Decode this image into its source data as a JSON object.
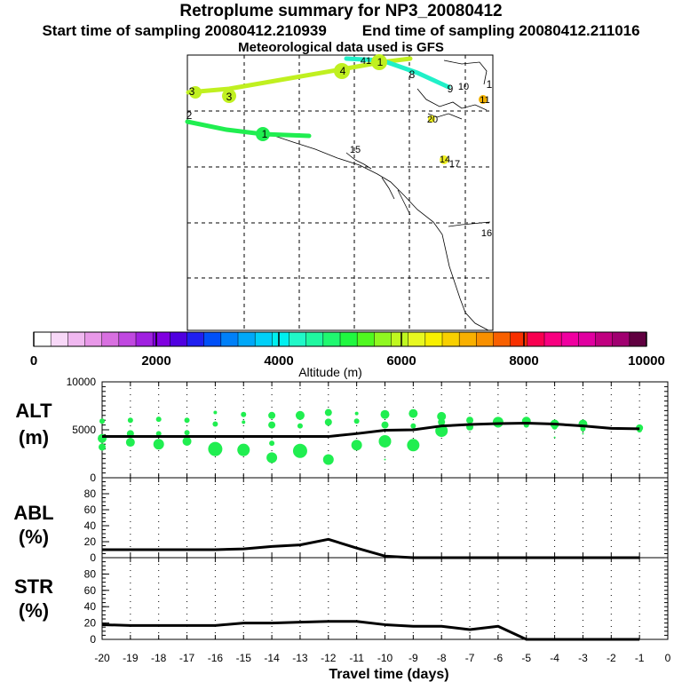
{
  "header": {
    "title": "Retroplume summary for NP3_20080412",
    "start_label": "Start time of sampling 20080412.210939",
    "end_label": "End time of sampling 20080412.211016",
    "met_label": "Meteorological data used is GFS"
  },
  "colors": {
    "scale": [
      "#ffffff",
      "#f8d8f8",
      "#f0b8f0",
      "#e898e8",
      "#d870e0",
      "#c048e0",
      "#a020e0",
      "#8000e0",
      "#5000e0",
      "#2020f0",
      "#0050f8",
      "#0080f8",
      "#00a8f8",
      "#00d0f8",
      "#00f0f0",
      "#20f8c8",
      "#20f8a0",
      "#20f870",
      "#20f840",
      "#50f820",
      "#90f820",
      "#c0f820",
      "#e8f820",
      "#f8f000",
      "#f8d000",
      "#f8b000",
      "#f89000",
      "#f86000",
      "#f83000",
      "#f80050",
      "#f80080",
      "#f000a0",
      "#e000a0",
      "#c00080",
      "#a00070",
      "#600040"
    ],
    "green": "#20ee50",
    "lime": "#c0f020",
    "cyan": "#20f0c8",
    "yellow": "#f0f020"
  },
  "map": {
    "labels": [
      {
        "text": "4",
        "kind": "lime"
      },
      {
        "text": "41",
        "kind": "lime"
      },
      {
        "text": "1",
        "kind": "lime"
      },
      {
        "text": "3",
        "kind": "lime"
      },
      {
        "text": "3",
        "kind": "lime"
      },
      {
        "text": "8",
        "kind": "cyan"
      },
      {
        "text": "10",
        "kind": "cyan"
      },
      {
        "text": "9",
        "kind": "cyan"
      },
      {
        "text": "11",
        "kind": "orange"
      },
      {
        "text": "2",
        "kind": "green"
      },
      {
        "text": "1",
        "kind": "green"
      },
      {
        "text": "20",
        "kind": "yellow"
      },
      {
        "text": "15",
        "kind": "yellow"
      },
      {
        "text": "14",
        "kind": "yellow"
      },
      {
        "text": "17",
        "kind": "yellow"
      },
      {
        "text": "16",
        "kind": "cyan"
      },
      {
        "text": "1",
        "kind": "orange"
      }
    ]
  },
  "chart_data": [
    {
      "type": "colorbar",
      "xlabel": "Altitude (m)",
      "range": [
        0,
        10000
      ],
      "ticks": [
        "0",
        "2000",
        "4000",
        "6000",
        "8000",
        "10000"
      ]
    },
    {
      "type": "line",
      "ylabel": [
        "ALT",
        "(m)"
      ],
      "ylim": [
        0,
        10000
      ],
      "yticks": [
        "0",
        "5000",
        "10000"
      ],
      "x": [
        -20,
        -19,
        -18,
        -17,
        -16,
        -15,
        -14,
        -13,
        -12,
        -11,
        -10,
        -9,
        -8,
        -7,
        -6,
        -5,
        -4,
        -3,
        -2,
        -1
      ],
      "values": [
        4300,
        4300,
        4300,
        4300,
        4300,
        4300,
        4300,
        4300,
        4300,
        4600,
        4950,
        5000,
        5400,
        5550,
        5650,
        5700,
        5600,
        5400,
        5150,
        5100
      ],
      "scatter": {
        "name": "plume particles",
        "points": [
          [
            -20,
            5900,
            3
          ],
          [
            -20,
            4100,
            5
          ],
          [
            -20,
            3200,
            4
          ],
          [
            -19,
            6000,
            3
          ],
          [
            -19,
            4600,
            4
          ],
          [
            -19,
            3700,
            5
          ],
          [
            -18,
            6100,
            3
          ],
          [
            -18,
            4600,
            3
          ],
          [
            -18,
            3500,
            6
          ],
          [
            -17,
            6000,
            3
          ],
          [
            -17,
            4700,
            3
          ],
          [
            -17,
            3800,
            5
          ],
          [
            -16,
            6800,
            2
          ],
          [
            -16,
            5600,
            3
          ],
          [
            -16,
            3000,
            8
          ],
          [
            -15,
            6600,
            3
          ],
          [
            -15,
            5800,
            2
          ],
          [
            -15,
            2900,
            7
          ],
          [
            -14,
            6500,
            4
          ],
          [
            -14,
            5500,
            4
          ],
          [
            -14,
            2100,
            6
          ],
          [
            -14,
            3600,
            3
          ],
          [
            -13,
            6500,
            5
          ],
          [
            -13,
            5400,
            3
          ],
          [
            -13,
            2800,
            8
          ],
          [
            -12,
            6800,
            4
          ],
          [
            -12,
            5800,
            4
          ],
          [
            -12,
            1900,
            6
          ],
          [
            -11,
            6700,
            2
          ],
          [
            -11,
            5900,
            3
          ],
          [
            -11,
            3400,
            6
          ],
          [
            -10,
            6600,
            5
          ],
          [
            -10,
            5500,
            4
          ],
          [
            -10,
            4100,
            3
          ],
          [
            -10,
            3800,
            7
          ],
          [
            -10,
            1900,
            1
          ],
          [
            -9,
            6700,
            5
          ],
          [
            -9,
            5400,
            3
          ],
          [
            -9,
            3400,
            7
          ],
          [
            -8,
            6400,
            5
          ],
          [
            -8,
            5800,
            4
          ],
          [
            -8,
            4900,
            7
          ],
          [
            -7,
            6000,
            4
          ],
          [
            -7,
            5300,
            4
          ],
          [
            -6,
            5800,
            6
          ],
          [
            -6,
            5600,
            4
          ],
          [
            -5,
            5900,
            5
          ],
          [
            -5,
            5500,
            3
          ],
          [
            -4,
            5600,
            5
          ],
          [
            -4,
            5300,
            3
          ],
          [
            -4,
            4200,
            1
          ],
          [
            -3,
            5600,
            5
          ],
          [
            -3,
            5100,
            3
          ],
          [
            -3,
            4600,
            1
          ],
          [
            -1,
            5200,
            4
          ],
          [
            -1,
            5000,
            3
          ]
        ]
      }
    },
    {
      "type": "line",
      "ylabel": [
        "ABL",
        "(%)"
      ],
      "ylim": [
        0,
        100
      ],
      "yticks": [
        "0",
        "20",
        "40",
        "60",
        "80"
      ],
      "x": [
        -20,
        -19,
        -18,
        -17,
        -16,
        -15,
        -14,
        -13,
        -12,
        -11,
        -10,
        -9,
        -8,
        -7,
        -6,
        -5,
        -4,
        -3,
        -2,
        -1
      ],
      "values": [
        10,
        10,
        10,
        10,
        10,
        11,
        14,
        16,
        23,
        12,
        2,
        0,
        0,
        0,
        0,
        0,
        0,
        0,
        0,
        0
      ]
    },
    {
      "type": "line",
      "ylabel": [
        "STR",
        "(%)"
      ],
      "ylim": [
        0,
        100
      ],
      "yticks": [
        "0",
        "20",
        "40",
        "60",
        "80"
      ],
      "x": [
        -20,
        -19,
        -18,
        -17,
        -16,
        -15,
        -14,
        -13,
        -12,
        -11,
        -10,
        -9,
        -8,
        -7,
        -6,
        -5,
        -4,
        -3,
        -2,
        -1
      ],
      "values": [
        18,
        17,
        17,
        17,
        17,
        20,
        20,
        21,
        22,
        22,
        18,
        16,
        16,
        12,
        16,
        0,
        0,
        0,
        0,
        0
      ],
      "xlabel": "Travel time (days)",
      "xticks": [
        "-20",
        "-19",
        "-18",
        "-17",
        "-16",
        "-15",
        "-14",
        "-13",
        "-12",
        "-11",
        "-10",
        "-9",
        "-8",
        "-7",
        "-6",
        "-5",
        "-4",
        "-3",
        "-2",
        "-1",
        "0"
      ]
    }
  ]
}
